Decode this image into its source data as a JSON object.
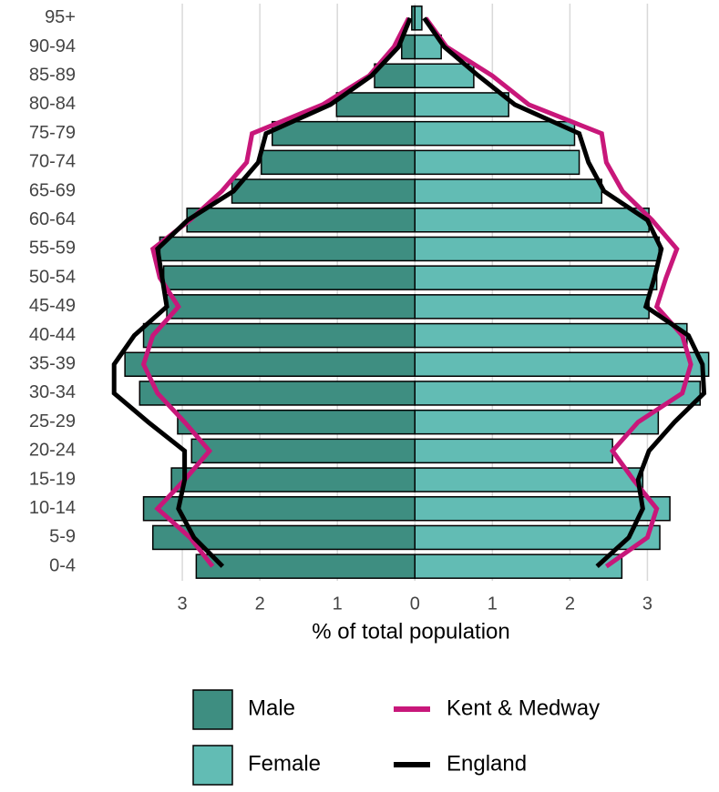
{
  "chart_data": {
    "type": "pyramid",
    "x_label": "% of total population",
    "categories": [
      "0-4",
      "5-9",
      "10-14",
      "15-19",
      "20-24",
      "25-29",
      "30-34",
      "35-39",
      "40-44",
      "45-49",
      "50-54",
      "55-59",
      "60-64",
      "65-69",
      "70-74",
      "75-79",
      "80-84",
      "85-89",
      "90-94",
      "95+"
    ],
    "xlim": [
      -4,
      3.9
    ],
    "xticks": [
      {
        "value": -3,
        "label": "3"
      },
      {
        "value": -2,
        "label": "2"
      },
      {
        "value": -1,
        "label": "1"
      },
      0,
      1,
      2,
      3
    ],
    "grid": true,
    "series": [
      {
        "name": "Male",
        "color": "#3e8e81",
        "type": "bar",
        "values": [
          -2.82,
          -3.38,
          -3.5,
          -3.14,
          -2.88,
          -3.06,
          -3.55,
          -3.74,
          -3.5,
          -3.2,
          -3.24,
          -3.29,
          -2.94,
          -2.36,
          -1.98,
          -1.84,
          -1.01,
          -0.52,
          -0.17,
          -0.04
        ]
      },
      {
        "name": "Female",
        "color": "#62bcb4",
        "type": "bar",
        "values": [
          2.67,
          3.16,
          3.29,
          2.94,
          2.55,
          3.14,
          3.68,
          3.79,
          3.51,
          3.02,
          3.12,
          3.15,
          3.02,
          2.41,
          2.12,
          2.06,
          1.21,
          0.76,
          0.34,
          0.09
        ]
      },
      {
        "name": "Kent & Medway",
        "color": "#c8177a",
        "type": "line",
        "male": [
          -2.61,
          -2.9,
          -3.32,
          -2.97,
          -2.65,
          -2.97,
          -3.32,
          -3.5,
          -3.38,
          -3.05,
          -3.29,
          -3.38,
          -2.9,
          -2.49,
          -2.17,
          -2.1,
          -1.19,
          -0.59,
          -0.27,
          -0.08
        ],
        "female": [
          2.47,
          3.0,
          3.12,
          2.82,
          2.55,
          2.88,
          3.45,
          3.56,
          3.45,
          3.12,
          3.24,
          3.38,
          3.06,
          2.68,
          2.47,
          2.41,
          1.47,
          1.0,
          0.41,
          0.14
        ]
      },
      {
        "name": "England",
        "color": "#000000",
        "type": "line",
        "male": [
          -2.48,
          -2.85,
          -3.05,
          -2.97,
          -2.97,
          -3.44,
          -3.88,
          -3.88,
          -3.62,
          -3.2,
          -3.26,
          -3.32,
          -2.93,
          -2.34,
          -2.02,
          -1.92,
          -1.09,
          -0.56,
          -0.21,
          -0.06
        ],
        "female": [
          2.35,
          2.76,
          2.94,
          2.88,
          3.02,
          3.35,
          3.73,
          3.71,
          3.53,
          2.98,
          3.09,
          3.18,
          3.0,
          2.44,
          2.24,
          2.12,
          1.29,
          0.82,
          0.38,
          0.12
        ]
      }
    ]
  }
}
